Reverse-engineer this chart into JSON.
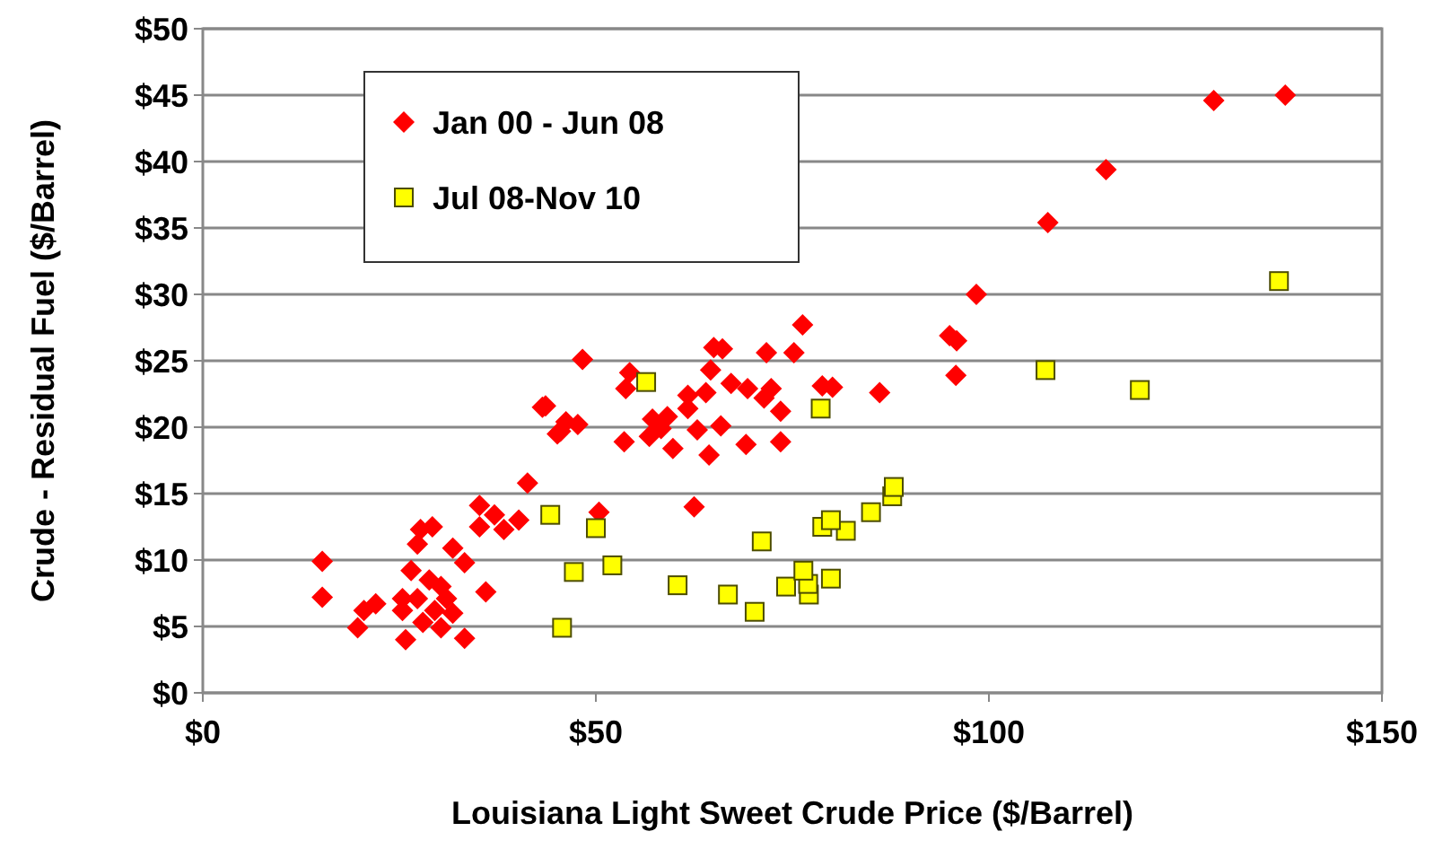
{
  "chart_data": {
    "type": "scatter",
    "xlabel": "Louisiana Light Sweet Crude Price ($/Barrel)",
    "ylabel": "Crude - Residual Fuel  ($/Barrel)",
    "xlim": [
      0,
      150
    ],
    "ylim": [
      0,
      50
    ],
    "xticks": [
      {
        "value": 0,
        "label": "$0"
      },
      {
        "value": 50,
        "label": "$50"
      },
      {
        "value": 100,
        "label": "$100"
      },
      {
        "value": 150,
        "label": "$150"
      }
    ],
    "yticks": [
      {
        "value": 0,
        "label": "$0"
      },
      {
        "value": 5,
        "label": "$5"
      },
      {
        "value": 10,
        "label": "$10"
      },
      {
        "value": 15,
        "label": "$15"
      },
      {
        "value": 20,
        "label": "$20"
      },
      {
        "value": 25,
        "label": "$25"
      },
      {
        "value": 30,
        "label": "$30"
      },
      {
        "value": 35,
        "label": "$35"
      },
      {
        "value": 40,
        "label": "$40"
      },
      {
        "value": 45,
        "label": "$45"
      },
      {
        "value": 50,
        "label": "$50"
      }
    ],
    "grid": "y",
    "legend": "top left",
    "series": [
      {
        "name": "Jan 00 - Jun 08",
        "color": "#ff0000",
        "marker": "diamond",
        "x": [
          137.7,
          128.6,
          114.9,
          107.5,
          98.4,
          95,
          95.9,
          95.8,
          86.1,
          76.3,
          48.3,
          65,
          66.1,
          71.7,
          75.2,
          54.3,
          53.8,
          64.6,
          67.2,
          69.3,
          72.3,
          71.4,
          73.5,
          78.8,
          80.1,
          64,
          61.7,
          61.7,
          57.2,
          59.1,
          58.3,
          56.8,
          59.8,
          62.9,
          65.9,
          64.4,
          69.1,
          73.5,
          53.6,
          43.6,
          45.5,
          47.7,
          50.4,
          62.5,
          43.2,
          46.2,
          45.1,
          41.3,
          35.2,
          37.1,
          35.2,
          40.2,
          38.3,
          27.7,
          29.2,
          27.3,
          31.8,
          33.3,
          26.5,
          28.8,
          30.3,
          25.4,
          27.3,
          29.5,
          31.8,
          28,
          25.8,
          30.3,
          36,
          33.3,
          20.5,
          22,
          19.7,
          15.2,
          15.2,
          25.4,
          31
        ],
        "values": [
          45,
          44.6,
          39.4,
          35.4,
          30,
          26.9,
          26.5,
          23.9,
          22.6,
          27.7,
          25.1,
          26,
          25.9,
          25.6,
          25.6,
          24.1,
          22.9,
          24.3,
          23.3,
          22.9,
          22.9,
          22.2,
          21.2,
          23.1,
          23,
          22.6,
          22.4,
          21.4,
          20.6,
          20.8,
          19.9,
          19.3,
          18.4,
          19.8,
          20.1,
          17.9,
          18.7,
          18.9,
          18.9,
          21.6,
          19.7,
          20.2,
          13.6,
          14,
          21.5,
          20.4,
          19.5,
          15.8,
          14.1,
          13.4,
          12.5,
          13,
          12.3,
          12.3,
          12.5,
          11.2,
          10.9,
          9.8,
          9.2,
          8.5,
          8,
          6.2,
          7.1,
          6.2,
          6,
          5.3,
          4,
          4.9,
          7.6,
          4.1,
          6.2,
          6.7,
          4.9,
          9.9,
          7.2,
          7.1,
          7.1
        ]
      },
      {
        "name": "Jul 08-Nov 10",
        "color": "#ffff00",
        "marker": "square",
        "x": [
          136.9,
          119.2,
          107.2,
          56.4,
          78.6,
          87.9,
          87.7,
          85,
          79.9,
          78.8,
          81.8,
          44.2,
          50,
          71.1,
          52.1,
          47.2,
          60.4,
          66.8,
          70.2,
          76.4,
          74.2,
          77,
          77.1,
          79.9,
          45.7
        ],
        "values": [
          31,
          22.8,
          24.3,
          23.4,
          21.4,
          15.5,
          14.8,
          13.6,
          13,
          12.5,
          12.2,
          13.4,
          12.4,
          11.4,
          9.6,
          9.1,
          8.1,
          7.4,
          6.1,
          9.2,
          8,
          8.2,
          7.4,
          8.6,
          4.9
        ]
      }
    ]
  }
}
